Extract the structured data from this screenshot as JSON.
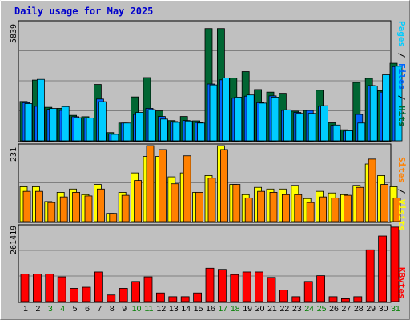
{
  "title": "Daily usage for May 2025",
  "colors": {
    "background": "#c0c0c0",
    "title": "#0000cc",
    "hits": "#006633",
    "files": "#0066ff",
    "pages": "#00ccff",
    "visits": "#ffff00",
    "sites": "#ff8000",
    "kbytes": "#ff0000",
    "weekday_label": "#000000",
    "weekend_label": "#007f00"
  },
  "panels": {
    "hits": {
      "max_label": "5839",
      "legend": {
        "pages": "Pages",
        "sep1": " / ",
        "files": "Files",
        "sep2": " / ",
        "hits": "Hits"
      }
    },
    "visits": {
      "max_label": "231",
      "legend": {
        "sites": "Sites",
        "sep": " / ",
        "visits": "Visits"
      }
    },
    "kbytes": {
      "max_label": "261419",
      "legend": {
        "kbytes": "KBytes"
      }
    }
  },
  "days": [
    {
      "label": "1",
      "weekend": false
    },
    {
      "label": "2",
      "weekend": false
    },
    {
      "label": "3",
      "weekend": true
    },
    {
      "label": "4",
      "weekend": true
    },
    {
      "label": "5",
      "weekend": false
    },
    {
      "label": "6",
      "weekend": false
    },
    {
      "label": "7",
      "weekend": false
    },
    {
      "label": "8",
      "weekend": false
    },
    {
      "label": "9",
      "weekend": false
    },
    {
      "label": "10",
      "weekend": true
    },
    {
      "label": "11",
      "weekend": true
    },
    {
      "label": "12",
      "weekend": false
    },
    {
      "label": "13",
      "weekend": false
    },
    {
      "label": "14",
      "weekend": false
    },
    {
      "label": "15",
      "weekend": false
    },
    {
      "label": "16",
      "weekend": false
    },
    {
      "label": "17",
      "weekend": true
    },
    {
      "label": "18",
      "weekend": true
    },
    {
      "label": "19",
      "weekend": false
    },
    {
      "label": "20",
      "weekend": false
    },
    {
      "label": "21",
      "weekend": false
    },
    {
      "label": "22",
      "weekend": false
    },
    {
      "label": "23",
      "weekend": false
    },
    {
      "label": "24",
      "weekend": true
    },
    {
      "label": "25",
      "weekend": true
    },
    {
      "label": "26",
      "weekend": false
    },
    {
      "label": "27",
      "weekend": false
    },
    {
      "label": "28",
      "weekend": false
    },
    {
      "label": "29",
      "weekend": false
    },
    {
      "label": "30",
      "weekend": false
    },
    {
      "label": "31",
      "weekend": true
    }
  ],
  "chart_data": [
    {
      "type": "bar",
      "categories": [
        "1",
        "2",
        "3",
        "4",
        "5",
        "6",
        "7",
        "8",
        "9",
        "10",
        "11",
        "12",
        "13",
        "14",
        "15",
        "16",
        "17",
        "18",
        "19",
        "20",
        "21",
        "22",
        "23",
        "24",
        "25",
        "26",
        "27",
        "28",
        "29",
        "30",
        "31"
      ],
      "ylim": [
        0,
        5839
      ],
      "ylabel": "Pages / Files / Hits",
      "series": [
        {
          "name": "Hits",
          "values": [
            1940,
            2995,
            1652,
            1600,
            1256,
            1188,
            2779,
            405,
            877,
            2164,
            3117,
            1476,
            998,
            1200,
            986,
            5535,
            5535,
            3093,
            3412,
            2528,
            2400,
            2343,
            1463,
            1500,
            2494,
            888,
            545,
            2878,
            3080,
            2469,
            3824
          ]
        },
        {
          "name": "Files",
          "values": [
            1880,
            1700,
            1550,
            1500,
            1188,
            1120,
            2059,
            340,
            877,
            1300,
            1600,
            1200,
            950,
            1000,
            900,
            2800,
            3005,
            2100,
            2200,
            1880,
            2214,
            1500,
            1400,
            1495,
            1700,
            760,
            480,
            1300,
            2725,
            2400,
            3660
          ]
        },
        {
          "name": "Pages",
          "values": [
            1836,
            3030,
            1596,
            1688,
            1140,
            1129,
            1928,
            319,
            877,
            1400,
            1538,
            1073,
            912,
            977,
            877,
            2757,
            3093,
            2154,
            2261,
            1859,
            2154,
            1527,
            1352,
            1352,
            1728,
            778,
            497,
            877,
            2708,
            3254,
            3677
          ]
        }
      ]
    },
    {
      "type": "bar",
      "categories": [
        "1",
        "2",
        "3",
        "4",
        "5",
        "6",
        "7",
        "8",
        "9",
        "10",
        "11",
        "12",
        "13",
        "14",
        "15",
        "16",
        "17",
        "18",
        "19",
        "20",
        "21",
        "22",
        "23",
        "24",
        "25",
        "26",
        "27",
        "28",
        "29",
        "30",
        "31"
      ],
      "ylim": [
        0,
        231
      ],
      "ylabel": "Sites / Visits",
      "series": [
        {
          "name": "Visits",
          "values": [
            106,
            106,
            61,
            89,
            99,
            82,
            113,
            25,
            89,
            148,
            198,
            198,
            136,
            148,
            89,
            140,
            231,
            113,
            82,
            104,
            99,
            99,
            110,
            70,
            92,
            87,
            82,
            110,
            175,
            140,
            106
          ]
        },
        {
          "name": "Sites",
          "values": [
            92,
            92,
            58,
            75,
            89,
            78,
            99,
            25,
            80,
            125,
            231,
            219,
            115,
            200,
            89,
            132,
            219,
            113,
            72,
            92,
            89,
            82,
            82,
            58,
            75,
            72,
            80,
            104,
            190,
            113,
            72
          ]
        }
      ]
    },
    {
      "type": "bar",
      "categories": [
        "1",
        "2",
        "3",
        "4",
        "5",
        "6",
        "7",
        "8",
        "9",
        "10",
        "11",
        "12",
        "13",
        "14",
        "15",
        "16",
        "17",
        "18",
        "19",
        "20",
        "21",
        "22",
        "23",
        "24",
        "25",
        "26",
        "27",
        "28",
        "29",
        "30",
        "31"
      ],
      "ylim": [
        0,
        261419
      ],
      "ylabel": "KBytes",
      "series": [
        {
          "name": "KBytes",
          "values": [
            96000,
            96000,
            96000,
            86000,
            46000,
            50000,
            103000,
            23000,
            46000,
            70000,
            86000,
            30000,
            17000,
            17000,
            30000,
            116000,
            112000,
            94000,
            103000,
            103000,
            84000,
            40000,
            17000,
            70000,
            90000,
            17000,
            10000,
            17000,
            180000,
            228000,
            259000
          ]
        }
      ]
    }
  ]
}
